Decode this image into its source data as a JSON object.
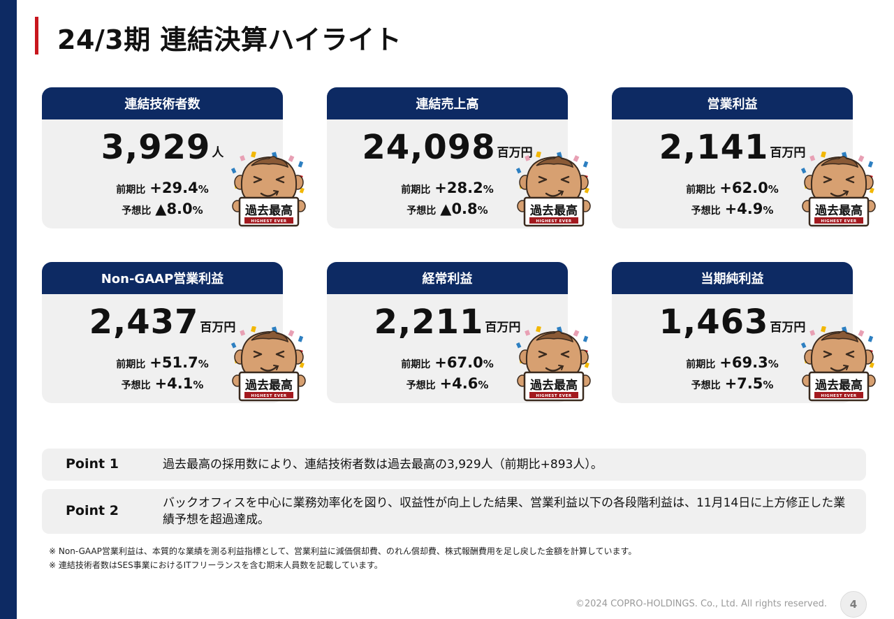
{
  "page_title": "24/3期 連結決算ハイライト",
  "cards": [
    {
      "header": "連結技術者数",
      "value": "3,929",
      "unit": "人",
      "c1_label": "前期比",
      "c1_value": "+29.4",
      "c1_pct": "%",
      "c2_label": "予想比",
      "c2_value": "▲8.0",
      "c2_pct": "%",
      "badge_text": "過去最高",
      "badge_sub": "HIGHEST EVER"
    },
    {
      "header": "連結売上高",
      "value": "24,098",
      "unit": "百万円",
      "c1_label": "前期比",
      "c1_value": "+28.2",
      "c1_pct": "%",
      "c2_label": "予想比",
      "c2_value": "▲0.8",
      "c2_pct": "%",
      "badge_text": "過去最高",
      "badge_sub": "HIGHEST EVER"
    },
    {
      "header": "営業利益",
      "value": "2,141",
      "unit": "百万円",
      "c1_label": "前期比",
      "c1_value": "+62.0",
      "c1_pct": "%",
      "c2_label": "予想比",
      "c2_value": "+4.9",
      "c2_pct": "%",
      "badge_text": "過去最高",
      "badge_sub": "HIGHEST EVER"
    },
    {
      "header": "Non-GAAP営業利益",
      "value": "2,437",
      "unit": "百万円",
      "c1_label": "前期比",
      "c1_value": "+51.7",
      "c1_pct": "%",
      "c2_label": "予想比",
      "c2_value": "+4.1",
      "c2_pct": "%",
      "badge_text": "過去最高",
      "badge_sub": "HIGHEST EVER"
    },
    {
      "header": "経常利益",
      "value": "2,211",
      "unit": "百万円",
      "c1_label": "前期比",
      "c1_value": "+67.0",
      "c1_pct": "%",
      "c2_label": "予想比",
      "c2_value": "+4.6",
      "c2_pct": "%",
      "badge_text": "過去最高",
      "badge_sub": "HIGHEST EVER"
    },
    {
      "header": "当期純利益",
      "value": "1,463",
      "unit": "百万円",
      "c1_label": "前期比",
      "c1_value": "+69.3",
      "c1_pct": "%",
      "c2_label": "予想比",
      "c2_value": "+7.5",
      "c2_pct": "%",
      "badge_text": "過去最高",
      "badge_sub": "HIGHEST EVER"
    }
  ],
  "points": [
    {
      "label": "Point 1",
      "text": "過去最高の採用数により、連結技術者数は過去最高の3,929人（前期比+893人）。"
    },
    {
      "label": "Point 2",
      "text": "バックオフィスを中心に業務効率化を図り、収益性が向上した結果、営業利益以下の各段階利益は、11月14日に上方修正した業績予想を超過達成。"
    }
  ],
  "notes": [
    "※ Non-GAAP営業利益は、本質的な業績を測る利益指標として、営業利益に減価償却費、のれん償却費、株式報酬費用を足し戻した金額を計算しています。",
    "※ 連結技術者数はSES事業におけるITフリーランスを含む期末人員数を記載しています。"
  ],
  "footer": "©2024 COPRO-HOLDINGS. Co., Ltd. All rights reserved.",
  "page_number": "4",
  "colors": {
    "navy": "#0d2a63",
    "accent_red": "#c8161d",
    "card_bg": "#f0f0f0"
  },
  "icons": {
    "mascot": "celebrating-mascot-icon"
  }
}
